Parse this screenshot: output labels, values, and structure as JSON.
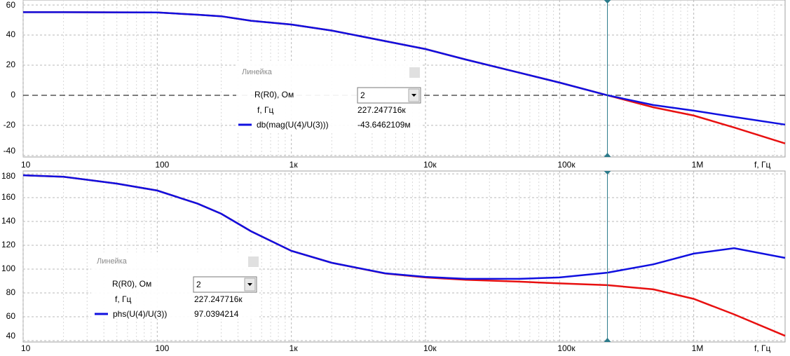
{
  "chart_data": [
    {
      "type": "line",
      "xscale": "log",
      "grid": true,
      "zero_line": true,
      "x_label": "f, Гц",
      "xlim": [
        10,
        4800000
      ],
      "xticks": [
        10,
        100,
        {
          "value": 1000,
          "label": "1к"
        },
        {
          "value": 10000,
          "label": "10к"
        },
        {
          "value": 100000,
          "label": "100к"
        },
        {
          "value": 1000000,
          "label": "1M"
        }
      ],
      "ylim": [
        -41,
        63.3
      ],
      "yticks": [
        -40,
        -20,
        0,
        20,
        40,
        60
      ],
      "x": [
        10,
        20,
        50,
        100,
        200,
        300,
        500,
        1000,
        2000,
        5000,
        10000,
        20000,
        50000,
        100000,
        227000,
        500000,
        1000000,
        2000000,
        4800000
      ],
      "series": [
        {
          "color": "#e81010",
          "values": [
            55.2,
            55.2,
            55.1,
            55,
            53.5,
            52.5,
            49.5,
            47,
            43,
            36,
            30.7,
            23.7,
            15,
            8.4,
            0,
            -8,
            -13.5,
            -21.4,
            -32
          ]
        },
        {
          "name": "db(mag(U(4)/U(3)))",
          "color": "#1010e0",
          "values": [
            55.2,
            55.2,
            55.1,
            55,
            53.5,
            52.5,
            49.5,
            47,
            43,
            36,
            30.7,
            23.7,
            15,
            8.4,
            0,
            -6.5,
            -10.2,
            -14.4,
            -19.5
          ]
        }
      ],
      "cursor": {
        "value": 227247.716,
        "label": "227.247716к"
      },
      "ruler": {
        "title": "Линейка",
        "param_label": "R(R0), Ом",
        "param_value": "2",
        "freq_label": "f, Гц",
        "readout": "-43.6462109м"
      }
    },
    {
      "type": "line",
      "xscale": "log",
      "grid": true,
      "zero_line": false,
      "x_label": "f, Гц",
      "xlim": [
        10,
        4800000
      ],
      "xticks": [
        10,
        100,
        {
          "value": 1000,
          "label": "1к"
        },
        {
          "value": 10000,
          "label": "10к"
        },
        {
          "value": 100000,
          "label": "100к"
        },
        {
          "value": 1000000,
          "label": "1M"
        }
      ],
      "ylim": [
        38.8,
        182.4
      ],
      "yticks": [
        40,
        60,
        80,
        100,
        120,
        140,
        160,
        180
      ],
      "x": [
        10,
        20,
        50,
        100,
        200,
        300,
        500,
        1000,
        2000,
        5000,
        10000,
        20000,
        50000,
        100000,
        227000,
        500000,
        1000000,
        2000000,
        4800000
      ],
      "series": [
        {
          "color": "#e81010",
          "values": [
            178.8,
            177.6,
            171.8,
            166,
            155,
            146.5,
            131.8,
            115.3,
            105.3,
            96.3,
            93,
            91,
            89.5,
            88,
            86.5,
            83,
            75,
            62,
            44
          ]
        },
        {
          "name": "phs(U(4)/U(3))",
          "color": "#1010e0",
          "values": [
            178.8,
            177.6,
            171.8,
            166,
            155,
            146.5,
            131.8,
            115.3,
            105.3,
            96.5,
            93.5,
            91.8,
            91.8,
            93,
            97,
            104,
            113,
            117.6,
            109.4
          ]
        }
      ],
      "cursor": {
        "value": 227247.716,
        "label": "227.247716к"
      },
      "ruler": {
        "title": "Линейка",
        "param_label": "R(R0), Ом",
        "param_value": "2",
        "freq_label": "f, Гц",
        "readout": "97.0394214"
      }
    }
  ]
}
